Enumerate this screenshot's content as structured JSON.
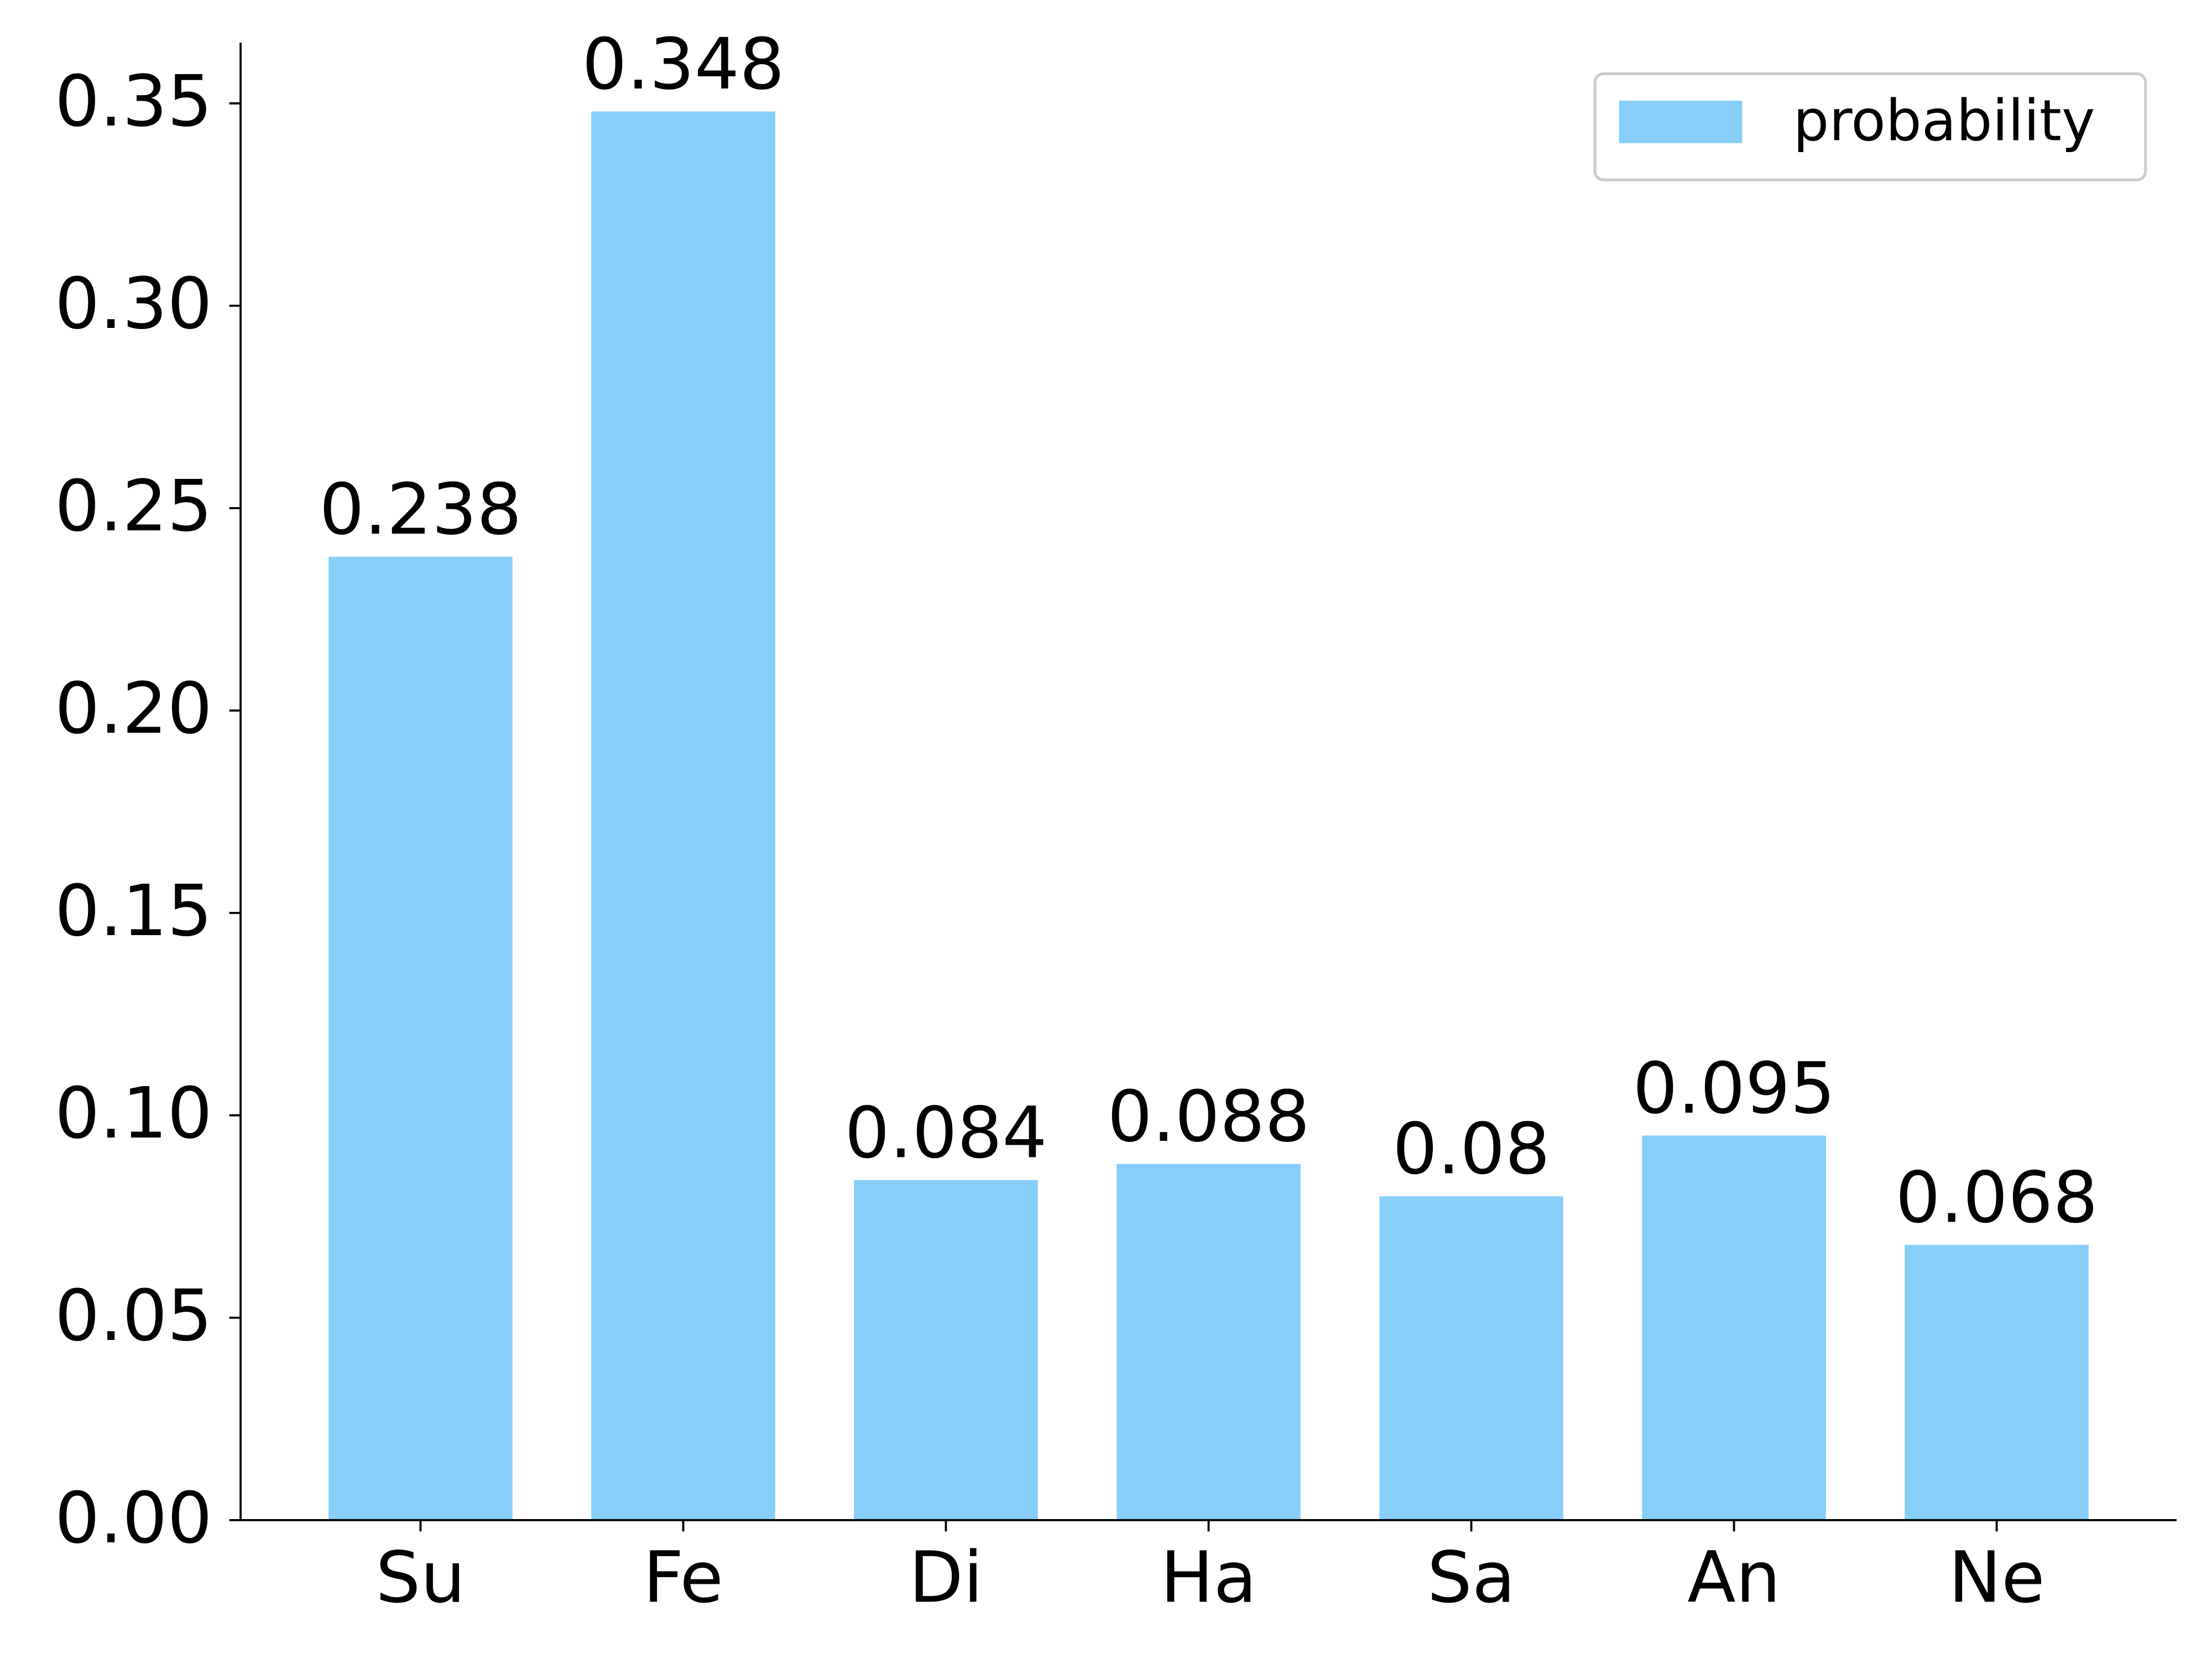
{
  "chart_data": {
    "type": "bar",
    "categories": [
      "Su",
      "Fe",
      "Di",
      "Ha",
      "Sa",
      "An",
      "Ne"
    ],
    "series": [
      {
        "name": "probability",
        "color": "#87cefa",
        "values": [
          0.238,
          0.348,
          0.084,
          0.088,
          0.08,
          0.095,
          0.068
        ]
      }
    ],
    "ylim": [
      0,
      0.365
    ],
    "yticks": [
      {
        "value": 0,
        "label": "0.00"
      },
      0.05,
      {
        "value": 0.1,
        "label": "0.10"
      },
      0.15,
      {
        "value": 0.2,
        "label": "0.20"
      },
      0.25,
      {
        "value": 0.3,
        "label": "0.30"
      },
      0.35
    ],
    "legend": "upper right",
    "grid": false
  }
}
